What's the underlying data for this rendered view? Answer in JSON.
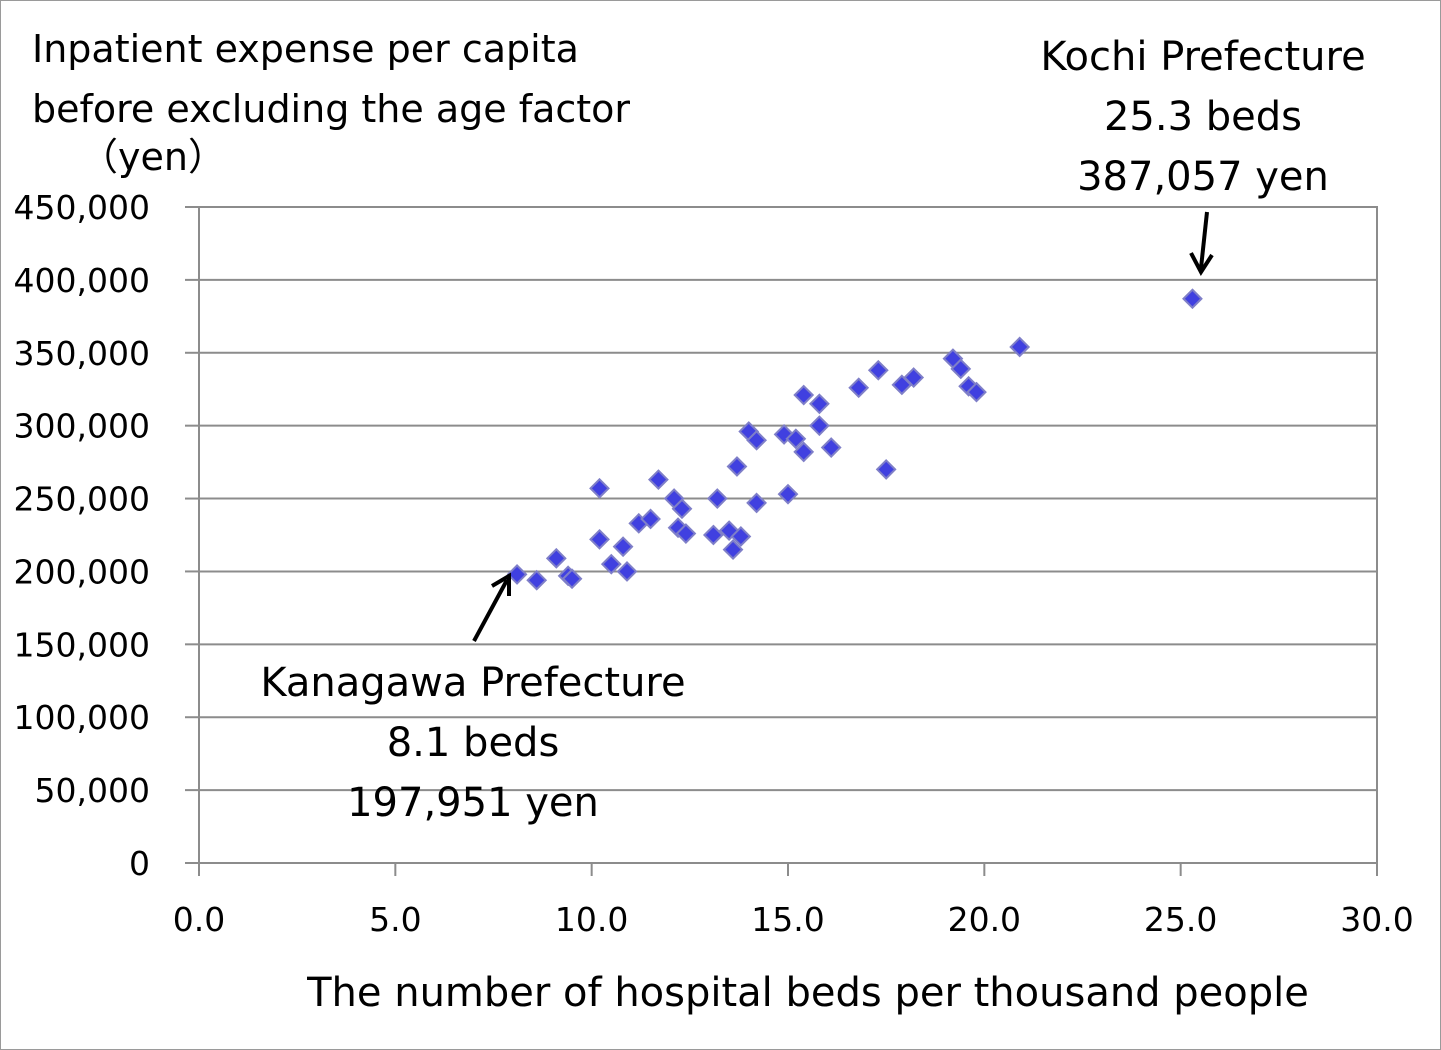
{
  "chart_data": {
    "type": "scatter",
    "title_line1": "Inpatient expense per capita",
    "title_line2": "before excluding the age factor",
    "title_line2_color": "#c00000",
    "ylabel": "（yen）",
    "xlabel": "The  number of hospital beds per thousand people",
    "xlim": [
      0,
      30
    ],
    "ylim": [
      0,
      450000
    ],
    "x_ticks": [
      "0.0",
      "5.0",
      "10.0",
      "15.0",
      "20.0",
      "25.0",
      "30.0"
    ],
    "y_ticks": [
      "0",
      "50,000",
      "100,000",
      "150,000",
      "200,000",
      "250,000",
      "300,000",
      "350,000",
      "400,000",
      "450,000"
    ],
    "grid": "horizontal",
    "marker": "diamond",
    "marker_color": "#4040e0",
    "marker_edge": "#7f7fc8",
    "points": [
      {
        "x": 8.1,
        "y": 197951
      },
      {
        "x": 8.6,
        "y": 194000
      },
      {
        "x": 9.1,
        "y": 209000
      },
      {
        "x": 9.4,
        "y": 197000
      },
      {
        "x": 9.5,
        "y": 195000
      },
      {
        "x": 10.2,
        "y": 257000
      },
      {
        "x": 10.2,
        "y": 222000
      },
      {
        "x": 10.5,
        "y": 205000
      },
      {
        "x": 10.8,
        "y": 217000
      },
      {
        "x": 10.9,
        "y": 200000
      },
      {
        "x": 11.2,
        "y": 233000
      },
      {
        "x": 11.5,
        "y": 236000
      },
      {
        "x": 11.7,
        "y": 263000
      },
      {
        "x": 12.1,
        "y": 250000
      },
      {
        "x": 12.3,
        "y": 243000
      },
      {
        "x": 12.2,
        "y": 230000
      },
      {
        "x": 12.4,
        "y": 226000
      },
      {
        "x": 13.2,
        "y": 250000
      },
      {
        "x": 13.1,
        "y": 225000
      },
      {
        "x": 13.5,
        "y": 228000
      },
      {
        "x": 13.6,
        "y": 215000
      },
      {
        "x": 13.8,
        "y": 224000
      },
      {
        "x": 13.7,
        "y": 272000
      },
      {
        "x": 14.0,
        "y": 296000
      },
      {
        "x": 14.2,
        "y": 290000
      },
      {
        "x": 14.2,
        "y": 247000
      },
      {
        "x": 14.9,
        "y": 294000
      },
      {
        "x": 15.0,
        "y": 253000
      },
      {
        "x": 15.2,
        "y": 291000
      },
      {
        "x": 15.4,
        "y": 321000
      },
      {
        "x": 15.4,
        "y": 282000
      },
      {
        "x": 15.8,
        "y": 315000
      },
      {
        "x": 15.8,
        "y": 300000
      },
      {
        "x": 16.1,
        "y": 285000
      },
      {
        "x": 16.8,
        "y": 326000
      },
      {
        "x": 17.3,
        "y": 338000
      },
      {
        "x": 17.5,
        "y": 270000
      },
      {
        "x": 17.9,
        "y": 328000
      },
      {
        "x": 18.2,
        "y": 333000
      },
      {
        "x": 19.2,
        "y": 346000
      },
      {
        "x": 19.4,
        "y": 339000
      },
      {
        "x": 19.6,
        "y": 327000
      },
      {
        "x": 19.8,
        "y": 323000
      },
      {
        "x": 20.9,
        "y": 354000
      },
      {
        "x": 25.3,
        "y": 387057
      }
    ],
    "annotations": [
      {
        "name": "kochi",
        "lines": [
          "Kochi Prefecture",
          "25.3 beds",
          "387,057 yen"
        ],
        "target_x": 25.3,
        "target_y": 387057
      },
      {
        "name": "kanagawa",
        "lines": [
          "Kanagawa Prefecture",
          "8.1 beds",
          "197,951 yen"
        ],
        "target_x": 8.1,
        "target_y": 197951
      }
    ]
  }
}
